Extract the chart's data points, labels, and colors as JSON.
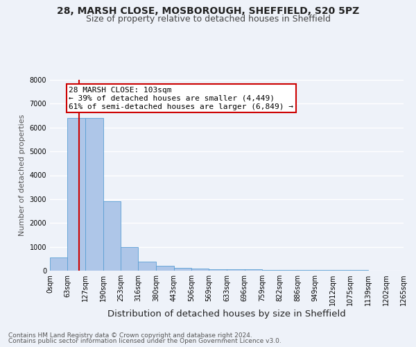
{
  "title_line1": "28, MARSH CLOSE, MOSBOROUGH, SHEFFIELD, S20 5PZ",
  "title_line2": "Size of property relative to detached houses in Sheffield",
  "xlabel": "Distribution of detached houses by size in Sheffield",
  "ylabel": "Number of detached properties",
  "bar_edges": [
    0,
    63,
    127,
    190,
    253,
    316,
    380,
    443,
    506,
    569,
    633,
    696,
    759,
    822,
    886,
    949,
    1012,
    1075,
    1139,
    1202,
    1265
  ],
  "bar_heights": [
    550,
    6400,
    6400,
    2900,
    980,
    370,
    190,
    110,
    95,
    70,
    55,
    45,
    35,
    30,
    25,
    20,
    18,
    15,
    12,
    10
  ],
  "bar_color": "#aec6e8",
  "bar_edgecolor": "#5a9fd4",
  "property_size": 103,
  "red_line_color": "#cc0000",
  "annotation_line1": "28 MARSH CLOSE: 103sqm",
  "annotation_line2": "← 39% of detached houses are smaller (4,449)",
  "annotation_line3": "61% of semi-detached houses are larger (6,849) →",
  "annotation_box_color": "#ffffff",
  "annotation_box_edgecolor": "#cc0000",
  "ylim": [
    0,
    8000
  ],
  "yticks": [
    0,
    1000,
    2000,
    3000,
    4000,
    5000,
    6000,
    7000,
    8000
  ],
  "xlim": [
    0,
    1265
  ],
  "footer_line1": "Contains HM Land Registry data © Crown copyright and database right 2024.",
  "footer_line2": "Contains public sector information licensed under the Open Government Licence v3.0.",
  "bg_color": "#eef2f9",
  "grid_color": "#ffffff",
  "title_fontsize": 10,
  "subtitle_fontsize": 9,
  "ylabel_fontsize": 8,
  "xlabel_fontsize": 9.5,
  "tick_fontsize": 7,
  "annotation_fontsize": 8,
  "footer_fontsize": 6.5
}
